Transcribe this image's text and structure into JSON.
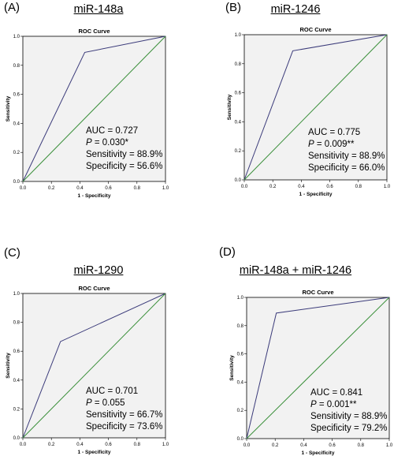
{
  "chart_data": [
    {
      "type": "line",
      "panel_label": "(A)",
      "title": "miR-148a",
      "subtitle": "ROC Curve",
      "xlabel": "1 - Specificity",
      "ylabel": "Sensitivity",
      "xlim": [
        0,
        1
      ],
      "ylim": [
        0,
        1
      ],
      "xticks": [
        "0.0",
        "0.2",
        "0.4",
        "0.6",
        "0.8",
        "1.0"
      ],
      "yticks": [
        "0.0",
        "0.2",
        "0.4",
        "0.6",
        "0.8",
        "1.0"
      ],
      "series": [
        {
          "x": [
            0.0,
            0.434,
            1.0
          ],
          "y": [
            0.0,
            0.889,
            1.0
          ],
          "color": "#3b3b7a"
        },
        {
          "x": [
            0.0,
            1.0
          ],
          "y": [
            0.0,
            1.0
          ],
          "color": "#3a8f3a"
        }
      ],
      "annotation": {
        "auc": "AUC = 0.727",
        "p_label": "P",
        "p_value": " = 0.030*",
        "sensitivity": "Sensitivity = 88.9%",
        "specificity": "Specificity = 56.6%"
      }
    },
    {
      "type": "line",
      "panel_label": "(B)",
      "title": "miR-1246",
      "subtitle": "ROC Curve",
      "xlabel": "1 - Specificity",
      "ylabel": "Sensitivity",
      "xlim": [
        0,
        1
      ],
      "ylim": [
        0,
        1
      ],
      "xticks": [
        "0.0",
        "0.2",
        "0.4",
        "0.6",
        "0.8",
        "1.0"
      ],
      "yticks": [
        "0.0",
        "0.2",
        "0.4",
        "0.6",
        "0.8",
        "1.0"
      ],
      "series": [
        {
          "x": [
            0.0,
            0.34,
            1.0
          ],
          "y": [
            0.0,
            0.889,
            1.0
          ],
          "color": "#3b3b7a"
        },
        {
          "x": [
            0.0,
            1.0
          ],
          "y": [
            0.0,
            1.0
          ],
          "color": "#3a8f3a"
        }
      ],
      "annotation": {
        "auc": "AUC = 0.775",
        "p_label": "P",
        "p_value": " = 0.009**",
        "sensitivity": "Sensitivity = 88.9%",
        "specificity": "Specificity = 66.0%"
      }
    },
    {
      "type": "line",
      "panel_label": "(C)",
      "title": "miR-1290",
      "subtitle": "ROC Curve",
      "xlabel": "1 - Specificity",
      "ylabel": "Sensitivity",
      "xlim": [
        0,
        1
      ],
      "ylim": [
        0,
        1
      ],
      "xticks": [
        "0.0",
        "0.2",
        "0.4",
        "0.6",
        "0.8",
        "1.0"
      ],
      "yticks": [
        "0.0",
        "0.2",
        "0.4",
        "0.6",
        "0.8",
        "1.0"
      ],
      "series": [
        {
          "x": [
            0.0,
            0.264,
            1.0
          ],
          "y": [
            0.0,
            0.667,
            1.0
          ],
          "color": "#3b3b7a"
        },
        {
          "x": [
            0.0,
            1.0
          ],
          "y": [
            0.0,
            1.0
          ],
          "color": "#3a8f3a"
        }
      ],
      "annotation": {
        "auc": "AUC = 0.701",
        "p_label": "P",
        "p_value": " = 0.055",
        "sensitivity": "Sensitivity = 66.7%",
        "specificity": "Specificity = 73.6%"
      }
    },
    {
      "type": "line",
      "panel_label": "(D)",
      "title": "miR-148a + miR-1246",
      "subtitle": "ROC Curve",
      "xlabel": "1 - Specificity",
      "ylabel": "Sensitivity",
      "xlim": [
        0,
        1
      ],
      "ylim": [
        0,
        1
      ],
      "xticks": [
        "0.0",
        "0.2",
        "0.4",
        "0.6",
        "0.8",
        "1.0"
      ],
      "yticks": [
        "0.0",
        "0.2",
        "0.4",
        "0.6",
        "0.8",
        "1.0"
      ],
      "series": [
        {
          "x": [
            0.0,
            0.208,
            1.0
          ],
          "y": [
            0.0,
            0.889,
            1.0
          ],
          "color": "#3b3b7a"
        },
        {
          "x": [
            0.0,
            1.0
          ],
          "y": [
            0.0,
            1.0
          ],
          "color": "#3a8f3a"
        }
      ],
      "annotation": {
        "auc": "AUC = 0.841",
        "p_label": "P",
        "p_value": " = 0.001**",
        "sensitivity": "Sensitivity = 88.9%",
        "specificity": "Specificity = 79.2%"
      }
    }
  ],
  "style": {
    "plot_background": "#f2f2f2",
    "roc_line_color": "#3b3b7a",
    "reference_line_color": "#3a8f3a"
  }
}
